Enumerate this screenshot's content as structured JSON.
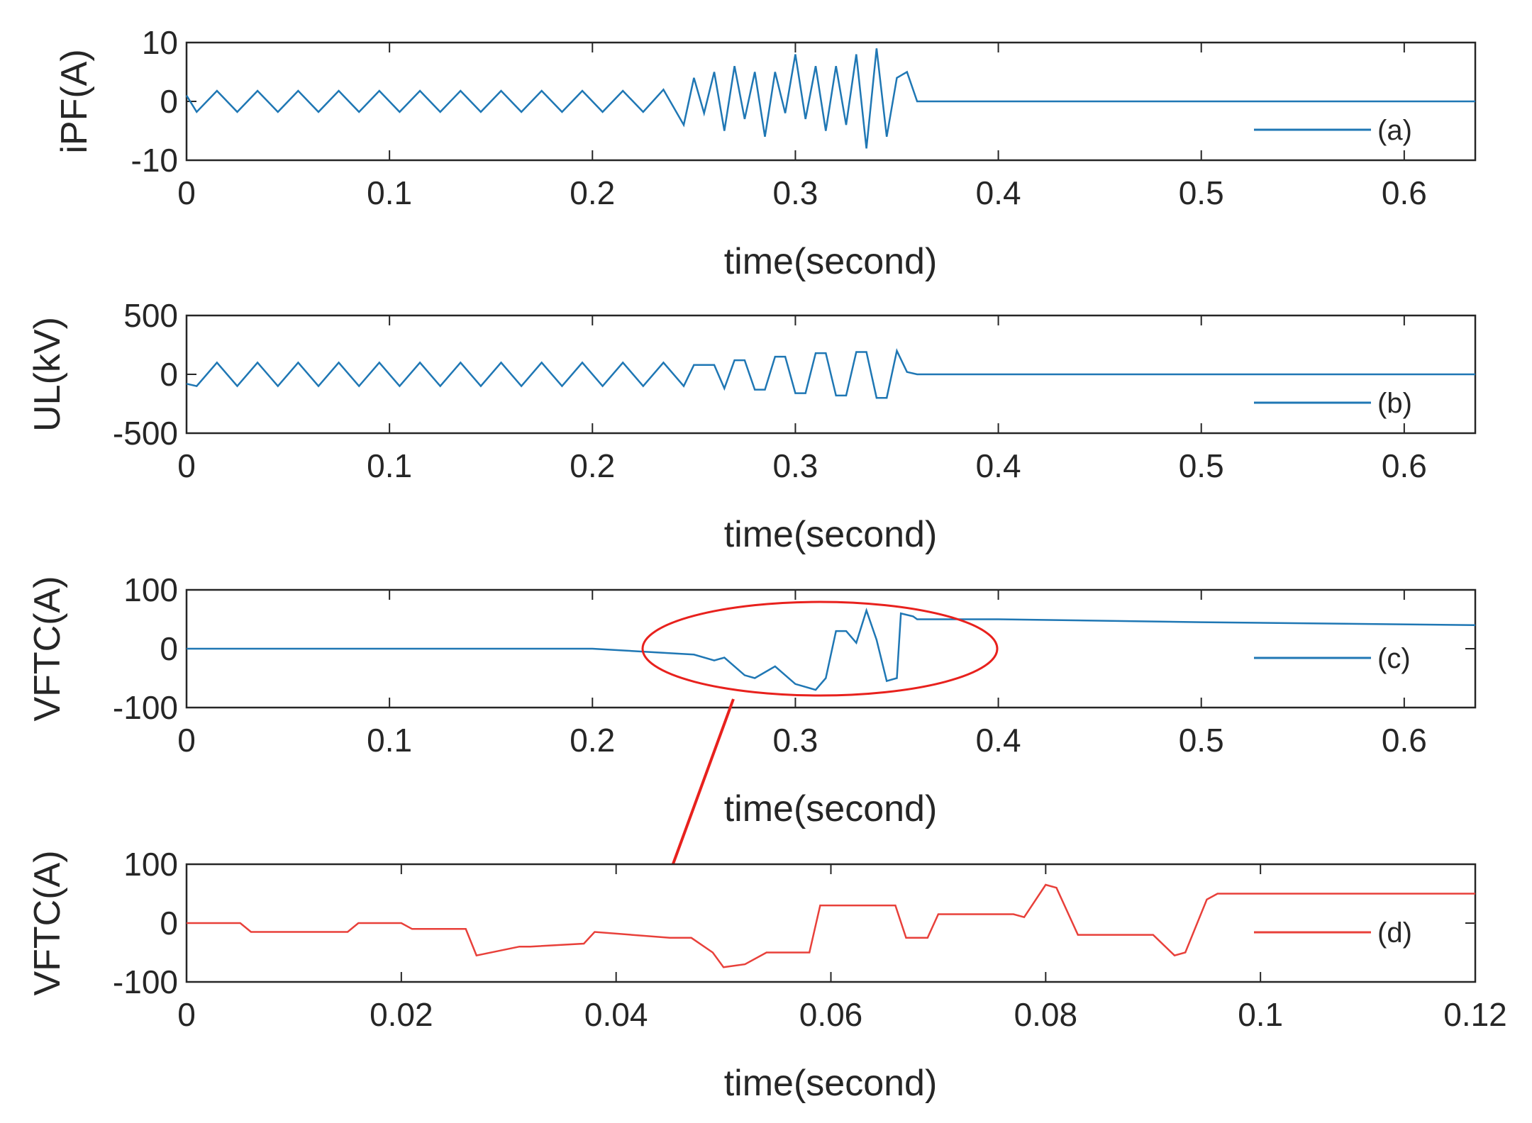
{
  "chart_data": [
    {
      "type": "line",
      "panel": "a",
      "ylabel": "iPF(A)",
      "xlabel": "time(second)",
      "xlim": [
        0,
        0.635
      ],
      "ylim": [
        -10,
        10
      ],
      "xticks": [
        "0",
        "0.1",
        "0.2",
        "0.3",
        "0.4",
        "0.5",
        "0.6"
      ],
      "yticks": [
        "10",
        "0",
        "-10"
      ],
      "legend": "(a)",
      "color": "#1f77b4",
      "series": [
        {
          "name": "(a)",
          "x": [
            0,
            0.005,
            0.015,
            0.025,
            0.035,
            0.045,
            0.055,
            0.065,
            0.075,
            0.085,
            0.095,
            0.105,
            0.115,
            0.125,
            0.135,
            0.145,
            0.155,
            0.165,
            0.175,
            0.185,
            0.195,
            0.205,
            0.215,
            0.225,
            0.235,
            0.24,
            0.245,
            0.25,
            0.255,
            0.26,
            0.265,
            0.27,
            0.275,
            0.28,
            0.285,
            0.29,
            0.295,
            0.3,
            0.305,
            0.31,
            0.315,
            0.32,
            0.325,
            0.33,
            0.335,
            0.34,
            0.345,
            0.35,
            0.355,
            0.36,
            0.4,
            0.5,
            0.635
          ],
          "values": [
            1,
            -1.8,
            1.8,
            -1.8,
            1.8,
            -1.8,
            1.8,
            -1.8,
            1.8,
            -1.8,
            1.8,
            -1.8,
            1.8,
            -1.8,
            1.8,
            -1.8,
            1.8,
            -1.8,
            1.8,
            -1.8,
            1.8,
            -1.8,
            1.8,
            -1.8,
            2,
            -1,
            -4,
            4,
            -2,
            5,
            -5,
            6,
            -3,
            5,
            -6,
            5,
            -2,
            8,
            -3,
            6,
            -5,
            6,
            -4,
            8,
            -8,
            9,
            -6,
            4,
            5,
            0,
            0,
            0,
            0
          ]
        }
      ]
    },
    {
      "type": "line",
      "panel": "b",
      "ylabel": "UL(kV)",
      "xlabel": "time(second)",
      "xlim": [
        0,
        0.635
      ],
      "ylim": [
        -500,
        500
      ],
      "xticks": [
        "0",
        "0.1",
        "0.2",
        "0.3",
        "0.4",
        "0.5",
        "0.6"
      ],
      "yticks": [
        "500",
        "0",
        "-500"
      ],
      "legend": "(b)",
      "color": "#1f77b4",
      "series": [
        {
          "name": "(b)",
          "x": [
            0,
            0.005,
            0.015,
            0.025,
            0.035,
            0.045,
            0.055,
            0.065,
            0.075,
            0.085,
            0.095,
            0.105,
            0.115,
            0.125,
            0.135,
            0.145,
            0.155,
            0.165,
            0.175,
            0.185,
            0.195,
            0.205,
            0.215,
            0.225,
            0.235,
            0.245,
            0.25,
            0.26,
            0.265,
            0.27,
            0.275,
            0.28,
            0.285,
            0.29,
            0.295,
            0.3,
            0.305,
            0.31,
            0.315,
            0.32,
            0.325,
            0.33,
            0.335,
            0.34,
            0.345,
            0.35,
            0.355,
            0.36,
            0.4,
            0.5,
            0.635
          ],
          "values": [
            -80,
            -100,
            100,
            -100,
            100,
            -100,
            100,
            -100,
            100,
            -100,
            100,
            -100,
            100,
            -100,
            100,
            -100,
            100,
            -100,
            100,
            -100,
            100,
            -100,
            100,
            -100,
            100,
            -100,
            80,
            80,
            -120,
            120,
            120,
            -130,
            -130,
            150,
            150,
            -160,
            -160,
            180,
            180,
            -180,
            -180,
            190,
            190,
            -200,
            -200,
            200,
            20,
            0,
            0,
            0,
            0
          ]
        }
      ]
    },
    {
      "type": "line",
      "panel": "c",
      "ylabel": "VFTC(A)",
      "xlabel": "time(second)",
      "xlim": [
        0,
        0.635
      ],
      "ylim": [
        -100,
        100
      ],
      "xticks": [
        "0",
        "0.1",
        "0.2",
        "0.3",
        "0.4",
        "0.5",
        "0.6"
      ],
      "yticks": [
        "100",
        "0",
        "-100"
      ],
      "legend": "(c)",
      "color": "#1f77b4",
      "series": [
        {
          "name": "(c)",
          "x": [
            0,
            0.1,
            0.2,
            0.25,
            0.26,
            0.265,
            0.275,
            0.28,
            0.29,
            0.3,
            0.31,
            0.315,
            0.32,
            0.325,
            0.33,
            0.335,
            0.34,
            0.345,
            0.35,
            0.352,
            0.358,
            0.36,
            0.4,
            0.5,
            0.635
          ],
          "values": [
            0,
            0,
            0,
            -10,
            -20,
            -15,
            -45,
            -50,
            -30,
            -60,
            -70,
            -50,
            30,
            30,
            10,
            65,
            15,
            -55,
            -50,
            60,
            55,
            50,
            50,
            45,
            40
          ]
        }
      ],
      "annotations": [
        "ellipse highlighting 0.23–0.4 s",
        "arrow to zoomed panel (d)"
      ]
    },
    {
      "type": "line",
      "panel": "d",
      "ylabel": "VFTC(A)",
      "xlabel": "time(second)",
      "xlim": [
        0,
        0.12
      ],
      "ylim": [
        -100,
        100
      ],
      "xticks": [
        "0",
        "0.02",
        "0.04",
        "0.06",
        "0.08",
        "0.1",
        "0.12"
      ],
      "yticks": [
        "100",
        "0",
        "-100"
      ],
      "legend": "(d)",
      "color": "#e8403a",
      "series": [
        {
          "name": "(d)",
          "x": [
            0,
            0.005,
            0.006,
            0.015,
            0.016,
            0.02,
            0.021,
            0.026,
            0.027,
            0.031,
            0.032,
            0.037,
            0.038,
            0.045,
            0.047,
            0.049,
            0.05,
            0.052,
            0.054,
            0.058,
            0.059,
            0.066,
            0.067,
            0.069,
            0.07,
            0.077,
            0.078,
            0.08,
            0.081,
            0.083,
            0.09,
            0.092,
            0.093,
            0.095,
            0.096,
            0.12
          ],
          "values": [
            0,
            0,
            -15,
            -15,
            0,
            0,
            -10,
            -10,
            -55,
            -40,
            -40,
            -35,
            -15,
            -25,
            -25,
            -50,
            -75,
            -70,
            -50,
            -50,
            30,
            30,
            -25,
            -25,
            15,
            15,
            10,
            65,
            60,
            -20,
            -20,
            -55,
            -50,
            40,
            50,
            50
          ]
        }
      ]
    }
  ]
}
